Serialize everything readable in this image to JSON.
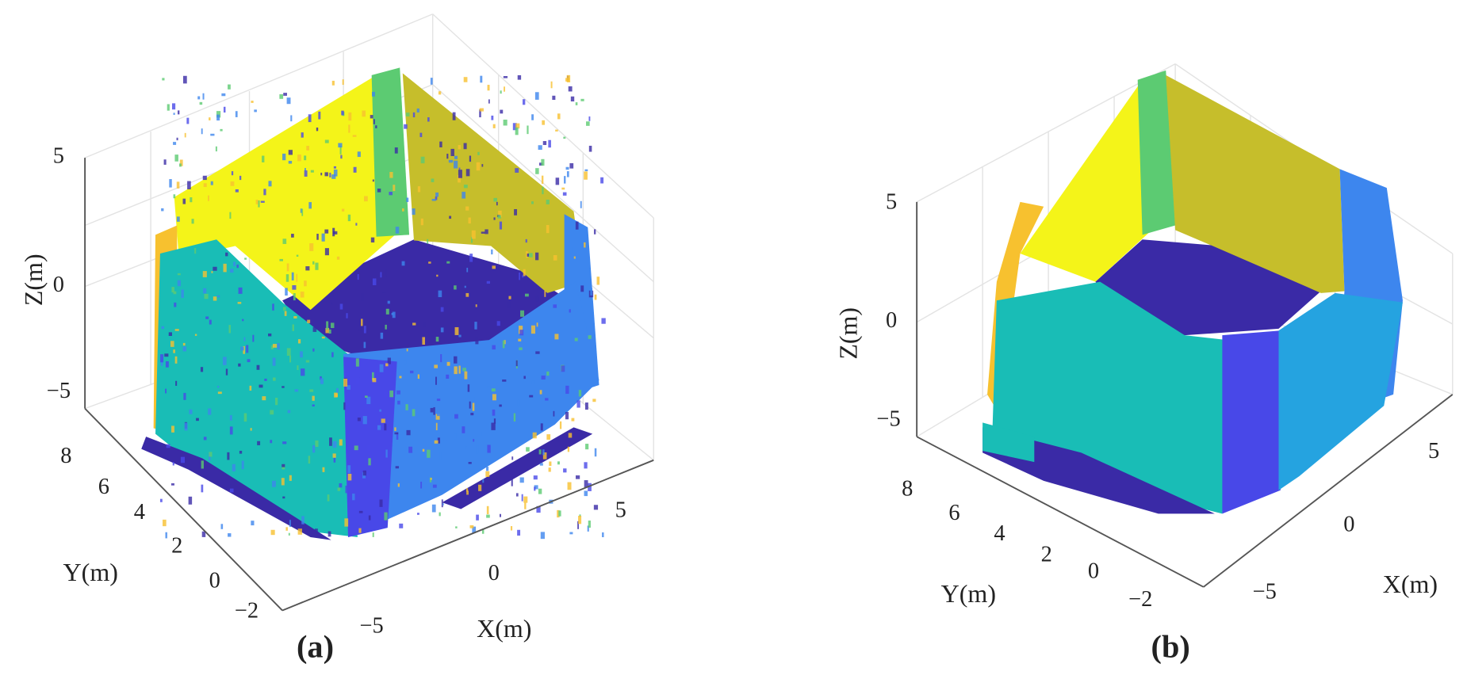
{
  "panels": [
    {
      "label": "(a)",
      "z_axis": {
        "title": "Z(m)",
        "ticks": [
          "5",
          "0",
          "−5"
        ]
      },
      "y_axis": {
        "title": "Y(m)",
        "ticks": [
          "8",
          "6",
          "4",
          "2",
          "0",
          "−2"
        ]
      },
      "x_axis": {
        "title": "X(m)",
        "ticks": [
          "−5",
          "0",
          "5"
        ]
      }
    },
    {
      "label": "(b)",
      "z_axis": {
        "title": "Z(m)",
        "ticks": [
          "5",
          "0",
          "−5"
        ]
      },
      "y_axis": {
        "title": "Y(m)",
        "ticks": [
          "8",
          "6",
          "4",
          "2",
          "0",
          "−2"
        ]
      },
      "x_axis": {
        "title": "X(m)",
        "ticks": [
          "−5",
          "0",
          "5"
        ]
      }
    }
  ]
}
